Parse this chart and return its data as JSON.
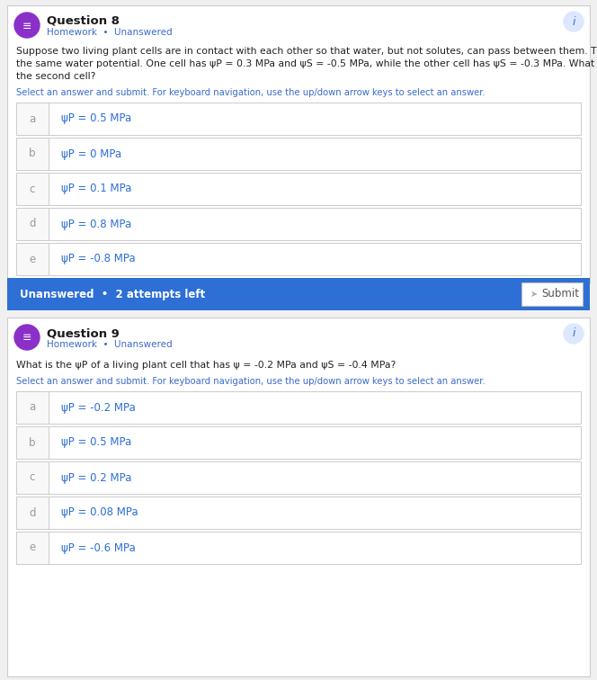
{
  "bg_color": "#f0f0f0",
  "card_bg": "#ffffff",
  "border_color": "#cccccc",
  "blue_bar_color": "#2d6fd4",
  "header_icon_color": "#8b2fc9",
  "title_color": "#1a1a1a",
  "subtitle_color": "#3a6bc9",
  "body_color": "#222222",
  "instruction_color": "#3a6bc9",
  "answer_label_color": "#999999",
  "answer_text_color": "#2d6fd4",
  "unanswered_text_color": "#ffffff",
  "q8_title": "Question 8",
  "q8_subtitle": "Homework  •  Unanswered",
  "q8_body_lines": [
    "Suppose two living plant cells are in contact with each other so that water, but not solutes, can pass between them. The cells have",
    "the same water potential. One cell has ψP = 0.3 MPa and ψS = -0.5 MPa, while the other cell has ψS = -0.3 MPa. What is the ψp of",
    "the second cell?"
  ],
  "q8_instruction": "Select an answer and submit. For keyboard navigation, use the up/down arrow keys to select an answer.",
  "q8_answers": [
    {
      "label": "a",
      "text": "ψP = 0.5 MPa"
    },
    {
      "label": "b",
      "text": "ψP = 0 MPa"
    },
    {
      "label": "c",
      "text": "ψP = 0.1 MPa"
    },
    {
      "label": "d",
      "text": "ψP = 0.8 MPa"
    },
    {
      "label": "e",
      "text": "ψP = -0.8 MPa"
    }
  ],
  "q8_footer_left": "Unanswered  •  2 attempts left",
  "q8_footer_btn": "Submit",
  "q9_title": "Question 9",
  "q9_subtitle": "Homework  •  Unanswered",
  "q9_body": "What is the ψP of a living plant cell that has ψ = -0.2 MPa and ψS = -0.4 MPa?",
  "q9_instruction": "Select an answer and submit. For keyboard navigation, use the up/down arrow keys to select an answer.",
  "q9_answers": [
    {
      "label": "a",
      "text": "ψP = -0.2 MPa"
    },
    {
      "label": "b",
      "text": "ψP = 0.5 MPa"
    },
    {
      "label": "c",
      "text": "ψP = 0.2 MPa"
    },
    {
      "label": "d",
      "text": "ψP = 0.08 MPa"
    },
    {
      "label": "e",
      "text": "ψP = -0.6 MPa"
    }
  ]
}
